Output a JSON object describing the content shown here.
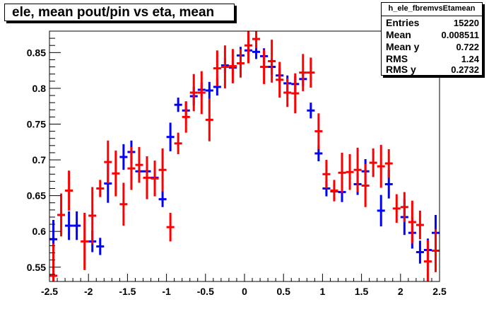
{
  "title": "ele, mean pout/pin vs eta, mean",
  "stats": {
    "name": "h_ele_fbremvsEtamean",
    "rows": [
      {
        "label": "Entries",
        "value": "15220"
      },
      {
        "label": "Mean",
        "value": "0.008511"
      },
      {
        "label": "Mean y",
        "value": "0.722"
      },
      {
        "label": "RMS",
        "value": "1.24"
      },
      {
        "label": "RMS y",
        "value": "0.2732"
      }
    ]
  },
  "colors": {
    "series_blue": "#0000ff",
    "series_red": "#ff0000",
    "axis": "#000000"
  },
  "chart_data": {
    "type": "scatter",
    "title": "ele, mean pout/pin vs eta, mean",
    "xlabel": "",
    "ylabel": "",
    "xlim": [
      -2.5,
      2.5
    ],
    "ylim": [
      0.53,
      0.88
    ],
    "xticks": [
      "-2.5",
      "-2",
      "-1.5",
      "-1",
      "-0.5",
      "0",
      "0.5",
      "1",
      "1.5",
      "2",
      "2.5"
    ],
    "yticks": [
      "0.55",
      "0.6",
      "0.65",
      "0.7",
      "0.75",
      "0.8",
      "0.85"
    ],
    "grid": false,
    "series": [
      {
        "color": "#0000ff",
        "xerr": 0.05,
        "points": [
          {
            "x": -2.45,
            "y": 0.589,
            "err": 0.027
          },
          {
            "x": -2.25,
            "y": 0.608,
            "err": 0.02
          },
          {
            "x": -2.15,
            "y": 0.608,
            "err": 0.02
          },
          {
            "x": -1.95,
            "y": 0.586,
            "err": 0.015
          },
          {
            "x": -1.85,
            "y": 0.579,
            "err": 0.012
          },
          {
            "x": -1.75,
            "y": 0.667,
            "err": 0.027
          },
          {
            "x": -1.55,
            "y": 0.704,
            "err": 0.018
          },
          {
            "x": -1.45,
            "y": 0.711,
            "err": 0.016
          },
          {
            "x": -1.35,
            "y": 0.684,
            "err": 0.01
          },
          {
            "x": -1.25,
            "y": 0.684,
            "err": 0.01
          },
          {
            "x": -1.15,
            "y": 0.675,
            "err": 0.01
          },
          {
            "x": -1.05,
            "y": 0.645,
            "err": 0.011
          },
          {
            "x": -0.95,
            "y": 0.732,
            "err": 0.02
          },
          {
            "x": -0.85,
            "y": 0.777,
            "err": 0.01
          },
          {
            "x": -0.75,
            "y": 0.769,
            "err": 0.012
          },
          {
            "x": -0.65,
            "y": 0.789,
            "err": 0.013
          },
          {
            "x": -0.55,
            "y": 0.798,
            "err": 0.01
          },
          {
            "x": -0.45,
            "y": 0.797,
            "err": 0.012
          },
          {
            "x": -0.35,
            "y": 0.802,
            "err": 0.012
          },
          {
            "x": -0.25,
            "y": 0.832,
            "err": 0.01
          },
          {
            "x": -0.15,
            "y": 0.829,
            "err": 0.01
          },
          {
            "x": -0.05,
            "y": 0.846,
            "err": 0.012
          },
          {
            "x": 0.05,
            "y": 0.853,
            "err": 0.011
          },
          {
            "x": 0.15,
            "y": 0.851,
            "err": 0.01
          },
          {
            "x": 0.25,
            "y": 0.845,
            "err": 0.011
          },
          {
            "x": 0.35,
            "y": 0.83,
            "err": 0.011
          },
          {
            "x": 0.45,
            "y": 0.818,
            "err": 0.01
          },
          {
            "x": 0.55,
            "y": 0.807,
            "err": 0.011
          },
          {
            "x": 0.65,
            "y": 0.806,
            "err": 0.011
          },
          {
            "x": 0.75,
            "y": 0.813,
            "err": 0.01
          },
          {
            "x": 0.85,
            "y": 0.769,
            "err": 0.011
          },
          {
            "x": 0.95,
            "y": 0.709,
            "err": 0.011
          },
          {
            "x": 1.05,
            "y": 0.66,
            "err": 0.011
          },
          {
            "x": 1.15,
            "y": 0.656,
            "err": 0.012
          },
          {
            "x": 1.25,
            "y": 0.655,
            "err": 0.014
          },
          {
            "x": 1.45,
            "y": 0.666,
            "err": 0.015
          },
          {
            "x": 1.55,
            "y": 0.684,
            "err": 0.017
          },
          {
            "x": 1.75,
            "y": 0.629,
            "err": 0.022
          },
          {
            "x": 1.85,
            "y": 0.666,
            "err": 0.02
          },
          {
            "x": 2.05,
            "y": 0.62,
            "err": 0.025
          },
          {
            "x": 2.15,
            "y": 0.598,
            "err": 0.022
          },
          {
            "x": 2.25,
            "y": 0.571,
            "err": 0.016
          },
          {
            "x": 2.35,
            "y": 0.574,
            "err": 0.016
          },
          {
            "x": 2.45,
            "y": 0.598,
            "err": 0.025
          },
          {
            "x": 2.55,
            "y": 0.601,
            "err": 0.02
          }
        ]
      },
      {
        "color": "#ff0000",
        "xerr": 0.05,
        "points": [
          {
            "x": -2.45,
            "y": 0.538,
            "err": 0.045
          },
          {
            "x": -2.35,
            "y": 0.623,
            "err": 0.03
          },
          {
            "x": -2.25,
            "y": 0.657,
            "err": 0.028
          },
          {
            "x": -2.05,
            "y": 0.586,
            "err": 0.04
          },
          {
            "x": -1.95,
            "y": 0.622,
            "err": 0.04
          },
          {
            "x": -1.85,
            "y": 0.66,
            "err": 0.012
          },
          {
            "x": -1.75,
            "y": 0.697,
            "err": 0.03
          },
          {
            "x": -1.65,
            "y": 0.681,
            "err": 0.032
          },
          {
            "x": -1.55,
            "y": 0.638,
            "err": 0.03
          },
          {
            "x": -1.45,
            "y": 0.688,
            "err": 0.03
          },
          {
            "x": -1.35,
            "y": 0.693,
            "err": 0.025
          },
          {
            "x": -1.25,
            "y": 0.675,
            "err": 0.03
          },
          {
            "x": -1.15,
            "y": 0.674,
            "err": 0.025
          },
          {
            "x": -1.05,
            "y": 0.686,
            "err": 0.03
          },
          {
            "x": -0.95,
            "y": 0.606,
            "err": 0.02
          },
          {
            "x": -0.85,
            "y": 0.723,
            "err": 0.015
          },
          {
            "x": -0.75,
            "y": 0.76,
            "err": 0.022
          },
          {
            "x": -0.65,
            "y": 0.794,
            "err": 0.026
          },
          {
            "x": -0.55,
            "y": 0.794,
            "err": 0.03
          },
          {
            "x": -0.45,
            "y": 0.756,
            "err": 0.03
          },
          {
            "x": -0.35,
            "y": 0.828,
            "err": 0.025
          },
          {
            "x": -0.25,
            "y": 0.83,
            "err": 0.03
          },
          {
            "x": -0.15,
            "y": 0.831,
            "err": 0.024
          },
          {
            "x": -0.05,
            "y": 0.835,
            "err": 0.02
          },
          {
            "x": 0.05,
            "y": 0.86,
            "err": 0.025
          },
          {
            "x": 0.15,
            "y": 0.869,
            "err": 0.013
          },
          {
            "x": 0.25,
            "y": 0.83,
            "err": 0.024
          },
          {
            "x": 0.35,
            "y": 0.838,
            "err": 0.03
          },
          {
            "x": 0.45,
            "y": 0.812,
            "err": 0.025
          },
          {
            "x": 0.55,
            "y": 0.794,
            "err": 0.02
          },
          {
            "x": 0.65,
            "y": 0.793,
            "err": 0.028
          },
          {
            "x": 0.75,
            "y": 0.822,
            "err": 0.026
          },
          {
            "x": 0.85,
            "y": 0.822,
            "err": 0.021
          },
          {
            "x": 0.95,
            "y": 0.74,
            "err": 0.025
          },
          {
            "x": 1.05,
            "y": 0.68,
            "err": 0.02
          },
          {
            "x": 1.15,
            "y": 0.657,
            "err": 0.015
          },
          {
            "x": 1.25,
            "y": 0.682,
            "err": 0.028
          },
          {
            "x": 1.35,
            "y": 0.683,
            "err": 0.025
          },
          {
            "x": 1.45,
            "y": 0.686,
            "err": 0.031
          },
          {
            "x": 1.55,
            "y": 0.664,
            "err": 0.03
          },
          {
            "x": 1.65,
            "y": 0.696,
            "err": 0.02
          },
          {
            "x": 1.75,
            "y": 0.691,
            "err": 0.03
          },
          {
            "x": 1.85,
            "y": 0.695,
            "err": 0.02
          },
          {
            "x": 1.95,
            "y": 0.632,
            "err": 0.02
          },
          {
            "x": 2.05,
            "y": 0.634,
            "err": 0.021
          },
          {
            "x": 2.15,
            "y": 0.613,
            "err": 0.03
          },
          {
            "x": 2.25,
            "y": 0.609,
            "err": 0.02
          },
          {
            "x": 2.35,
            "y": 0.558,
            "err": 0.03
          },
          {
            "x": 2.45,
            "y": 0.573,
            "err": 0.03
          }
        ]
      }
    ]
  }
}
